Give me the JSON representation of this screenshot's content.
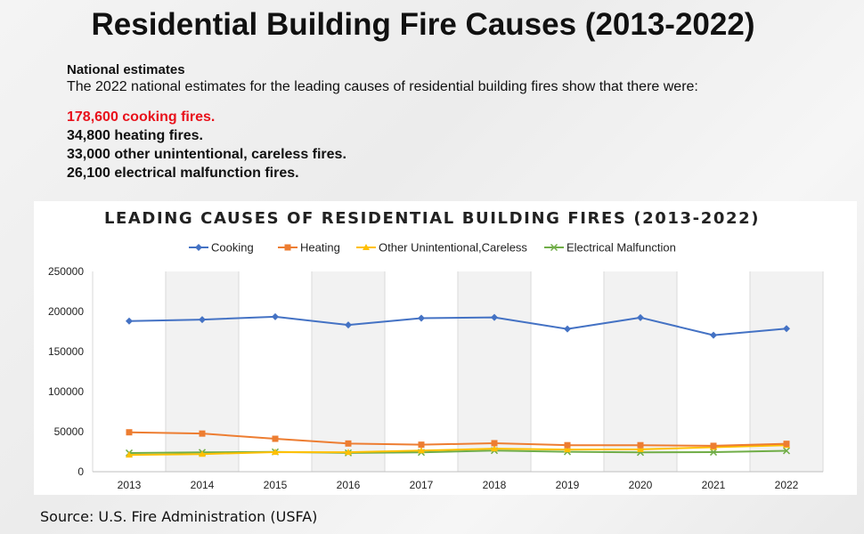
{
  "header": {
    "title": "Residential Building Fire Causes (2013-2022)"
  },
  "estimates": {
    "heading": "National estimates",
    "intro": "The 2022 national estimates for the leading causes of residential building fires show that there were:",
    "stats": [
      "178,600 cooking fires.",
      "34,800 heating fires.",
      "33,000 other unintentional, careless fires.",
      "26,100 electrical malfunction fires."
    ]
  },
  "colors": {
    "highlight": "#e8111b"
  },
  "chart_data": {
    "type": "line",
    "title": "LEADING CAUSES OF RESIDENTIAL BUILDING FIRES (2013-2022)",
    "xlabel": "",
    "ylabel": "",
    "x": [
      "2013",
      "2014",
      "2015",
      "2016",
      "2017",
      "2018",
      "2019",
      "2020",
      "2021",
      "2022"
    ],
    "ylim": [
      0,
      250000
    ],
    "yticks": [
      0,
      50000,
      100000,
      150000,
      200000,
      250000
    ],
    "grid": "vertical",
    "legend": "top",
    "series": [
      {
        "name": "Cooking",
        "color": "#4472c4",
        "marker": "diamond",
        "values": [
          188100,
          189900,
          193500,
          183200,
          191700,
          192600,
          178200,
          192400,
          170400,
          178600
        ]
      },
      {
        "name": "Heating",
        "color": "#ed7d31",
        "marker": "square",
        "values": [
          49200,
          47600,
          41100,
          35200,
          33700,
          35600,
          33100,
          33100,
          32300,
          34800
        ]
      },
      {
        "name": "Other Unintentional,Careless",
        "color": "#ffc000",
        "marker": "triangle",
        "values": [
          21000,
          22000,
          24500,
          24300,
          26400,
          28700,
          27600,
          27900,
          30500,
          33000
        ]
      },
      {
        "name": "Electrical Malfunction",
        "color": "#70ad47",
        "marker": "x",
        "values": [
          23400,
          24100,
          24700,
          23500,
          24200,
          26400,
          24900,
          24100,
          24400,
          26100
        ]
      }
    ]
  },
  "footer": {
    "source": "Source: U.S. Fire Administration (USFA)"
  }
}
